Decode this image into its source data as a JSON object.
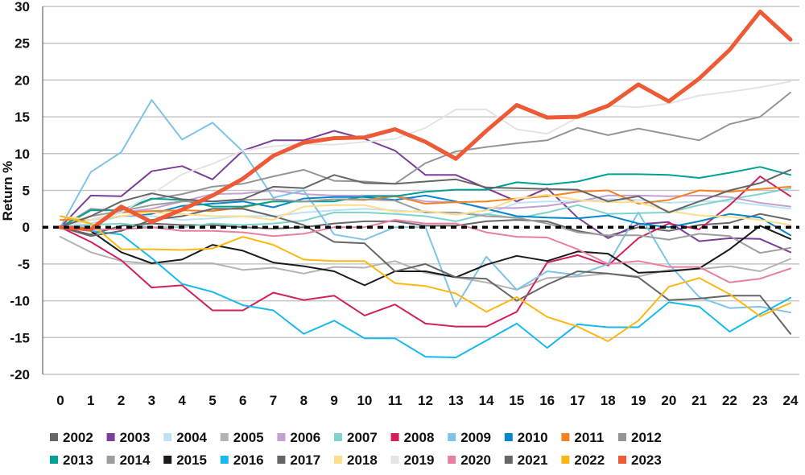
{
  "chart_data": {
    "type": "line",
    "title": "",
    "xlabel": "",
    "ylabel": "Return %",
    "ylim": [
      -20,
      30
    ],
    "yticks": [
      30,
      25,
      20,
      15,
      10,
      5,
      0,
      -5,
      -10,
      -15,
      -20
    ],
    "x": [
      0,
      1,
      2,
      3,
      4,
      5,
      6,
      7,
      8,
      9,
      10,
      11,
      12,
      13,
      14,
      15,
      16,
      17,
      18,
      19,
      20,
      21,
      22,
      23,
      24
    ],
    "grid": true,
    "legend_position": "bottom",
    "series": [
      {
        "name": "2002",
        "color": "#666666",
        "values": [
          0,
          -1,
          0.2,
          0.5,
          0.3,
          0.3,
          0,
          -0.2,
          0,
          0.5,
          0.8,
          0.8,
          0.2,
          0.2,
          0.8,
          1,
          0.8,
          -0.5,
          -1.2,
          0,
          -0.5,
          0.3,
          0.6,
          1.8,
          1.0
        ]
      },
      {
        "name": "2003",
        "color": "#7b3f98",
        "values": [
          0,
          4.3,
          4.2,
          7.6,
          8.3,
          6.5,
          10.4,
          11.8,
          11.8,
          13.1,
          12.0,
          10.4,
          7.1,
          7.1,
          5.3,
          3.5,
          5.3,
          1.3,
          -1.5,
          0.4,
          0.7,
          -1.9,
          -1.5,
          -1.6,
          -3.4
        ]
      },
      {
        "name": "2004",
        "color": "#bfe1f5",
        "values": [
          0,
          0.5,
          1.5,
          1.5,
          1.0,
          1.2,
          1.5,
          1.5,
          2,
          2.3,
          2.5,
          2.3,
          2.0,
          2.0,
          1.7,
          3.3,
          3.5,
          3.5,
          3.8,
          3.7,
          3.3,
          3.5,
          3.5,
          3.0,
          2.5
        ]
      },
      {
        "name": "2005",
        "color": "#b3b3b3",
        "values": [
          -1.3,
          -3.4,
          -4.6,
          -5,
          -4.9,
          -4.9,
          -5.8,
          -5.5,
          -6.3,
          -5.4,
          -5.5,
          -4.6,
          -6.2,
          -6.8,
          -7.5,
          -8.5,
          -6.9,
          -6.7,
          -6.3,
          -6.7,
          -5.8,
          -5.7,
          -5.3,
          -6.0,
          -4.3
        ]
      },
      {
        "name": "2006",
        "color": "#c3a0cf",
        "values": [
          0,
          1,
          2,
          2.5,
          3.5,
          4.5,
          4.6,
          5,
          4.5,
          4.3,
          4.3,
          4.3,
          3.5,
          3.4,
          2.6,
          2.6,
          2.9,
          3.5,
          4.3,
          4.3,
          4.2,
          4.3,
          4.1,
          3.3,
          2.8
        ]
      },
      {
        "name": "2007",
        "color": "#7fd3cb",
        "values": [
          0,
          0.3,
          0.5,
          0,
          0,
          0.5,
          0.3,
          0.5,
          0.9,
          2.0,
          2.0,
          1.8,
          1.5,
          0.8,
          1.8,
          1.2,
          2,
          3,
          1.8,
          1.9,
          2,
          3,
          3.8,
          4.5,
          5.3
        ]
      },
      {
        "name": "2008",
        "color": "#d1205a",
        "values": [
          0,
          -2,
          -4.5,
          -8.2,
          -7.9,
          -11.3,
          -11.3,
          -8.9,
          -9.9,
          -9.3,
          -12,
          -10.5,
          -13.1,
          -13.5,
          -13.5,
          -11.5,
          -4.8,
          -3.8,
          -5.2,
          -1.5,
          0.5,
          -0.3,
          3,
          6.9,
          4.2
        ]
      },
      {
        "name": "2009",
        "color": "#7fc3e8",
        "values": [
          0,
          7.5,
          10.2,
          17.3,
          11.9,
          14.2,
          10.3,
          4.0,
          5.0,
          -1.0,
          -1.7,
          0,
          0,
          -10.8,
          -4,
          -8.5,
          -6,
          -6.5,
          -5,
          2,
          -5,
          -9.5,
          -11,
          -10.8,
          -11.6
        ]
      },
      {
        "name": "2010",
        "color": "#0587ce",
        "values": [
          0,
          1,
          1.5,
          1.8,
          2.9,
          3.2,
          3.5,
          2.7,
          3.9,
          4.1,
          4.1,
          3.7,
          4.3,
          3.5,
          2.5,
          1.5,
          1.3,
          1.2,
          1.6,
          0.5,
          0,
          0.8,
          1.8,
          1.3,
          -1.1
        ]
      },
      {
        "name": "2011",
        "color": "#f58220",
        "values": [
          1,
          1,
          2,
          2.2,
          2.3,
          2.2,
          2.7,
          3.5,
          3.5,
          3.8,
          3.7,
          4.2,
          3.2,
          3.4,
          3.5,
          3.9,
          4.2,
          4.8,
          5.0,
          3.2,
          3.7,
          5,
          4.8,
          5.2,
          5.5
        ]
      },
      {
        "name": "2012",
        "color": "#939598",
        "values": [
          0,
          2.5,
          2.2,
          3.8,
          4.5,
          5.5,
          5.9,
          6.9,
          7.8,
          6.3,
          6.2,
          5.9,
          8.7,
          10.3,
          10.9,
          11.4,
          11.8,
          13.5,
          12.5,
          13.4,
          12.6,
          11.8,
          14,
          15,
          18.3
        ]
      },
      {
        "name": "2013",
        "color": "#00a195",
        "values": [
          0,
          2.3,
          2.3,
          3.9,
          3.7,
          2.8,
          2.8,
          3.5,
          3.5,
          3.5,
          4.2,
          4.2,
          4.8,
          5.1,
          5.1,
          6.1,
          5.8,
          6.2,
          7.2,
          7.2,
          7.1,
          6.7,
          7.4,
          8.2,
          7.1
        ]
      },
      {
        "name": "2014",
        "color": "#9d9d9d",
        "values": [
          0,
          1.5,
          2.2,
          3,
          3.5,
          3.5,
          3.7,
          3.8,
          3.5,
          3.8,
          3.8,
          3.6,
          2,
          2,
          1.5,
          1.3,
          0.5,
          -0.7,
          -1.1,
          -1.1,
          -1.7,
          -0.9,
          -1.2,
          -3.5,
          -2.8
        ]
      },
      {
        "name": "2015",
        "color": "#1a1a1a",
        "values": [
          0,
          -0.5,
          -3.4,
          -4.9,
          -4.4,
          -2.4,
          -3.2,
          -4.8,
          -5.3,
          -6.0,
          -7.9,
          -6.0,
          -6.0,
          -6.8,
          -5.1,
          -3.9,
          -4.6,
          -3.3,
          -3.6,
          -6.2,
          -6.0,
          -5.6,
          -3.0,
          0.2,
          -1.6
        ]
      },
      {
        "name": "2016",
        "color": "#1ab9ec",
        "values": [
          0,
          -0.5,
          -1,
          -4.2,
          -7.7,
          -8.8,
          -10.6,
          -11.3,
          -14.5,
          -12.7,
          -15.1,
          -15.1,
          -17.6,
          -17.7,
          -15.4,
          -13.1,
          -16.4,
          -13.2,
          -13.6,
          -13.6,
          -10.2,
          -10.8,
          -14.2,
          -11.8,
          -9.6
        ]
      },
      {
        "name": "2017",
        "color": "#666666",
        "values": [
          0,
          -1.2,
          -0.5,
          1,
          1.5,
          2.5,
          2.5,
          1.5,
          0.3,
          -2,
          -2.2,
          -6,
          -5,
          -6.8,
          -7,
          -10,
          -7.8,
          -6,
          -6.3,
          -6.8,
          -9.9,
          -9.7,
          -9.3,
          -9.3,
          -14.5
        ]
      },
      {
        "name": "2018",
        "color": "#fedd8c",
        "values": [
          1.5,
          1,
          1.5,
          2,
          1.8,
          1.5,
          1.5,
          1.0,
          2.8,
          3,
          3,
          2.1,
          2.2,
          1.7,
          2.3,
          3.9,
          4.4,
          3.7,
          3.4,
          3.4,
          2.2,
          1.6,
          1.4,
          1.0,
          0.3
        ]
      },
      {
        "name": "2019",
        "color": "#e4e4e4",
        "values": [
          0,
          1,
          2,
          4.5,
          7.2,
          8.6,
          10.4,
          11,
          11.3,
          11.2,
          11.6,
          12,
          13.5,
          16,
          16,
          13.3,
          12.7,
          14.9,
          16.5,
          16.3,
          16.8,
          17.9,
          18.4,
          19,
          19.8
        ]
      },
      {
        "name": "2020",
        "color": "#e87fa0",
        "values": [
          0,
          -0.3,
          -0.3,
          0,
          -0.5,
          -0.5,
          -0.7,
          -1.2,
          -0.9,
          0,
          0,
          1,
          0.5,
          0.5,
          -0.7,
          -1.3,
          -1.4,
          -3,
          -5,
          -4.6,
          -5.4,
          -5.4,
          -7.5,
          -7,
          -5.6
        ]
      },
      {
        "name": "2021",
        "color": "#666666",
        "values": [
          0,
          1.5,
          3.5,
          4.6,
          3.8,
          3.5,
          3.8,
          5.5,
          5.3,
          7.1,
          6,
          5.9,
          6.2,
          6.5,
          5.4,
          5.3,
          5.2,
          5.1,
          3.5,
          4.2,
          2.0,
          3.5,
          5,
          6,
          7.8
        ]
      },
      {
        "name": "2022",
        "color": "#fdb714",
        "values": [
          1.5,
          0.5,
          -3,
          -3,
          -3.1,
          -2.9,
          -1.3,
          -2.4,
          -4.4,
          -4.6,
          -4.6,
          -7.6,
          -8,
          -9.0,
          -11.5,
          -9.5,
          -12.2,
          -13.5,
          -15.5,
          -12.7,
          -8.1,
          -6.9,
          -9.1,
          -12.1,
          -10.3
        ]
      },
      {
        "name": "2023",
        "color": "#ee5a35",
        "highlight": true,
        "values": [
          0,
          -0.3,
          2.8,
          0.7,
          2.4,
          4.3,
          6.6,
          9.7,
          11.5,
          12.1,
          12.2,
          13.3,
          11.6,
          9.3,
          13.1,
          16.6,
          14.9,
          15.0,
          16.5,
          19.4,
          17.1,
          20.2,
          24.1,
          29.3,
          25.5
        ]
      }
    ]
  }
}
